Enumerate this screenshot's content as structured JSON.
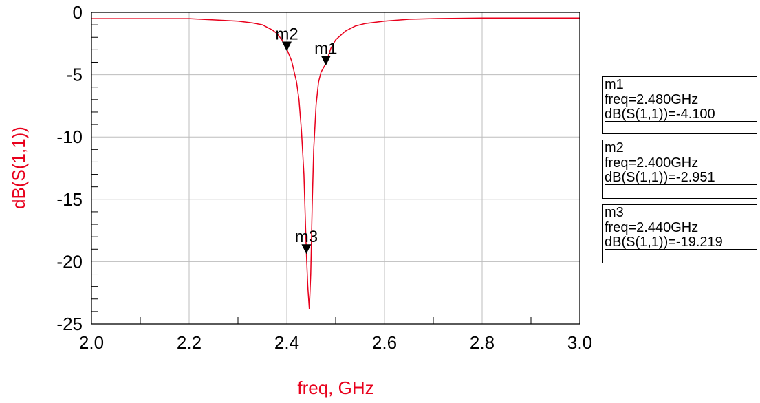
{
  "chart_data": {
    "type": "line",
    "title": "",
    "xlabel": "freq, GHz",
    "ylabel": "dB(S(1,1))",
    "xlim": [
      2.0,
      3.0
    ],
    "ylim": [
      -25,
      0
    ],
    "x_ticks": [
      "2.0",
      "2.2",
      "2.4",
      "2.6",
      "2.8",
      "3.0"
    ],
    "y_ticks": [
      "0",
      "-5",
      "-10",
      "-15",
      "-20",
      "-25"
    ],
    "grid": true,
    "line_color": "#e8001c",
    "series": [
      {
        "x": [
          2.0,
          2.05,
          2.1,
          2.15,
          2.2,
          2.25,
          2.3,
          2.33,
          2.35,
          2.37,
          2.38,
          2.39,
          2.4,
          2.41,
          2.42,
          2.425,
          2.43,
          2.435,
          2.44,
          2.443,
          2.446,
          2.449,
          2.452,
          2.455,
          2.46,
          2.465,
          2.47,
          2.48,
          2.49,
          2.5,
          2.52,
          2.54,
          2.56,
          2.6,
          2.65,
          2.7,
          2.8,
          2.9,
          3.0
        ],
        "y": [
          -0.5,
          -0.5,
          -0.5,
          -0.5,
          -0.5,
          -0.6,
          -0.7,
          -0.85,
          -1.0,
          -1.4,
          -1.7,
          -2.2,
          -2.951,
          -3.9,
          -5.6,
          -7.0,
          -9.5,
          -13.0,
          -19.219,
          -22.0,
          -23.8,
          -21.0,
          -15.5,
          -11.0,
          -7.4,
          -5.6,
          -4.8,
          -4.1,
          -2.9,
          -2.2,
          -1.5,
          -1.1,
          -0.9,
          -0.7,
          -0.55,
          -0.5,
          -0.45,
          -0.45,
          -0.45
        ]
      }
    ],
    "markers": [
      {
        "name": "m1",
        "freq_ghz": 2.48,
        "value": -4.1,
        "line1": "freq=2.480GHz",
        "line2": "dB(S(1,1))=-4.100"
      },
      {
        "name": "m2",
        "freq_ghz": 2.4,
        "value": -2.951,
        "line1": "freq=2.400GHz",
        "line2": "dB(S(1,1))=-2.951"
      },
      {
        "name": "m3",
        "freq_ghz": 2.44,
        "value": -19.219,
        "line1": "freq=2.440GHz",
        "line2": "dB(S(1,1))=-19.219"
      }
    ]
  }
}
